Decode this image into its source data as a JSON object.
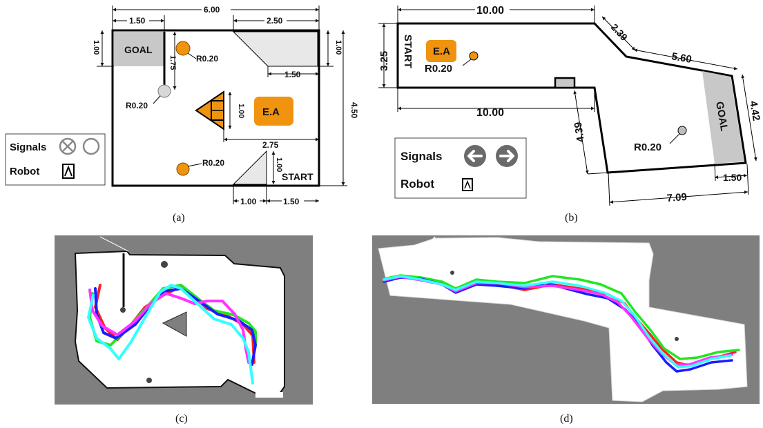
{
  "colors": {
    "obstacle": "#f0930f",
    "obstacle_stroke": "#7a4a00",
    "goal_fill": "#c8c8c8",
    "wedge_fill": "#e8e8e8",
    "map_gray": "#7f7f7f",
    "traj_red": "#ff2020",
    "traj_green": "#22e622",
    "traj_blue": "#1c1cff",
    "traj_magenta": "#ff33ff",
    "traj_cyan": "#33ffff"
  },
  "panel_a": {
    "caption": "(a)",
    "dims": {
      "top_total": "6.00",
      "top_left": "1.50",
      "top_right": "2.50",
      "left_goal": "1.00",
      "right_top": "1.00",
      "inner_wall": "1.75",
      "wedge_bottom": "1.50",
      "height": "4.50",
      "triangle": "1.00",
      "mid_span": "2.75",
      "start_wedge_h": "1.00",
      "bottom_left": "1.00",
      "bottom_right": "1.50"
    },
    "goal_label": "GOAL",
    "start_label": "START",
    "ea_label": "E.A",
    "radius_labels": [
      "R0.20",
      "R0.20",
      "R0.20"
    ],
    "legend": {
      "signals": "Signals",
      "robot": "Robot"
    }
  },
  "panel_b": {
    "caption": "(b)",
    "dims": {
      "top": "10.00",
      "diag": "2.39",
      "upper_right": "5.60",
      "left": "3.25",
      "mid": "10.00",
      "lower_left": "4.39",
      "right": "4.42",
      "bottom_right": "1.50",
      "bottom": "7.09"
    },
    "start_label": "START",
    "goal_label": "GOAL",
    "ea_label": "E.A",
    "radius_labels": [
      "R0.20",
      "R0.20"
    ],
    "legend": {
      "signals": "Signals",
      "robot": "Robot"
    }
  },
  "panel_c": {
    "caption": "(c)"
  },
  "panel_d": {
    "caption": "(d)"
  }
}
